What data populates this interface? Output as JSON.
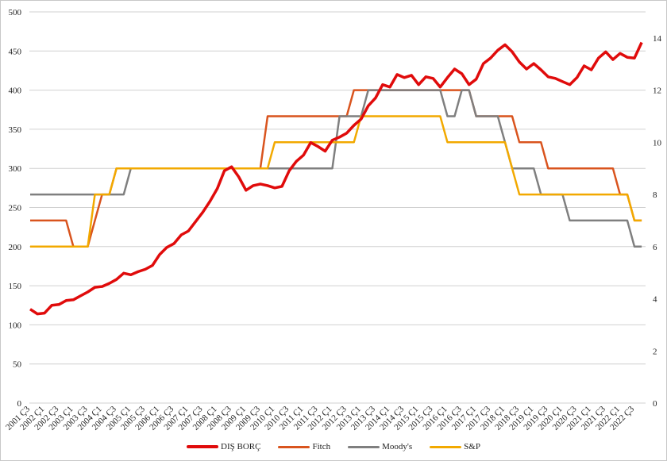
{
  "chart_data": {
    "type": "line",
    "title": "",
    "xlabel": "",
    "ylabel": "",
    "ylim": [
      0,
      500
    ],
    "y_ticks": [
      0,
      50,
      100,
      150,
      200,
      250,
      300,
      350,
      400,
      450,
      500
    ],
    "y2lim": [
      0,
      15
    ],
    "y2_ticks": [
      0,
      2,
      4,
      6,
      8,
      10,
      12,
      14
    ],
    "grid": true,
    "legend_position": "bottom",
    "x_start": "2001 Ç3",
    "x_tick_labels": [
      "2001 Ç3",
      "2002 Ç1",
      "2002 Ç3",
      "2003 Ç1",
      "2003 Ç3",
      "2004 Ç1",
      "2004 Ç3",
      "2005 Ç1",
      "2005 Ç3",
      "2006 Ç1",
      "2006 Ç3",
      "2007 Ç1",
      "2007 Ç3",
      "2008 Ç1",
      "2008 Ç3",
      "2009 Ç1",
      "2009 Ç3",
      "2010 Ç1",
      "2010 Ç3",
      "2011 Ç1",
      "2011 Ç3",
      "2012 Ç1",
      "2012 Ç3",
      "2013 Ç1",
      "2013 Ç3",
      "2014 Ç1",
      "2014 Ç3",
      "2015 Ç1",
      "2015 Ç3",
      "2016 Ç1",
      "2016 Ç3",
      "2017 Ç1",
      "2017 Ç3",
      "2018 Ç1",
      "2018 Ç3",
      "2019 Ç1",
      "2019 Ç3",
      "2020 Ç1",
      "2020 Ç3",
      "2021 Ç1",
      "2021 Ç3",
      "2022 Ç1",
      "2022 Ç3"
    ],
    "series": [
      {
        "name": "DIŞ BORÇ",
        "axis": "left",
        "color": "#e00b0b",
        "values": [
          120,
          114,
          115,
          125,
          126,
          131,
          132,
          137,
          142,
          148,
          149,
          153,
          158,
          166,
          164,
          168,
          171,
          176,
          190,
          199,
          204,
          215,
          220,
          232,
          244,
          258,
          274,
          297,
          302,
          289,
          272,
          278,
          280,
          278,
          275,
          277,
          297,
          309,
          317,
          333,
          328,
          322,
          336,
          340,
          345,
          355,
          363,
          380,
          390,
          407,
          404,
          420,
          416,
          419,
          407,
          417,
          415,
          404,
          416,
          427,
          421,
          407,
          414,
          434,
          441,
          451,
          458,
          449,
          436,
          427,
          434,
          426,
          417,
          415,
          411,
          407,
          416,
          431,
          426,
          441,
          449,
          439,
          447,
          442,
          441,
          461
        ]
      },
      {
        "name": "Fitch",
        "axis": "right",
        "color": "#d9541e",
        "values": [
          7,
          7,
          7,
          7,
          7,
          7,
          6,
          6,
          6,
          7,
          8,
          8,
          9,
          9,
          9,
          9,
          9,
          9,
          9,
          9,
          9,
          9,
          9,
          9,
          9,
          9,
          9,
          9,
          9,
          9,
          9,
          9,
          9,
          11,
          11,
          11,
          11,
          11,
          11,
          11,
          11,
          11,
          11,
          11,
          11,
          12,
          12,
          12,
          12,
          12,
          12,
          12,
          12,
          12,
          12,
          12,
          12,
          12,
          12,
          12,
          12,
          12,
          11,
          11,
          11,
          11,
          11,
          11,
          10,
          10,
          10,
          10,
          9,
          9,
          9,
          9,
          9,
          9,
          9,
          9,
          9,
          9,
          8,
          8,
          7,
          7
        ]
      },
      {
        "name": "Moody's",
        "axis": "right",
        "color": "#7f7f7f",
        "values": [
          8,
          8,
          8,
          8,
          8,
          8,
          8,
          8,
          8,
          8,
          8,
          8,
          8,
          8,
          9,
          9,
          9,
          9,
          9,
          9,
          9,
          9,
          9,
          9,
          9,
          9,
          9,
          9,
          9,
          9,
          9,
          9,
          9,
          9,
          9,
          9,
          9,
          9,
          9,
          9,
          9,
          9,
          9,
          11,
          11,
          11,
          11,
          12,
          12,
          12,
          12,
          12,
          12,
          12,
          12,
          12,
          12,
          12,
          11,
          11,
          12,
          12,
          11,
          11,
          11,
          11,
          10,
          9,
          9,
          9,
          9,
          8,
          8,
          8,
          8,
          7,
          7,
          7,
          7,
          7,
          7,
          7,
          7,
          7,
          6,
          6
        ]
      },
      {
        "name": "S&P",
        "axis": "right",
        "color": "#f2a900",
        "values": [
          6,
          6,
          6,
          6,
          6,
          6,
          6,
          6,
          6,
          8,
          8,
          8,
          9,
          9,
          9,
          9,
          9,
          9,
          9,
          9,
          9,
          9,
          9,
          9,
          9,
          9,
          9,
          9,
          9,
          9,
          9,
          9,
          9,
          9,
          10,
          10,
          10,
          10,
          10,
          10,
          10,
          10,
          10,
          10,
          10,
          10,
          11,
          11,
          11,
          11,
          11,
          11,
          11,
          11,
          11,
          11,
          11,
          11,
          10,
          10,
          10,
          10,
          10,
          10,
          10,
          10,
          10,
          9,
          8,
          8,
          8,
          8,
          8,
          8,
          8,
          8,
          8,
          8,
          8,
          8,
          8,
          8,
          8,
          8,
          7,
          7
        ]
      }
    ]
  }
}
